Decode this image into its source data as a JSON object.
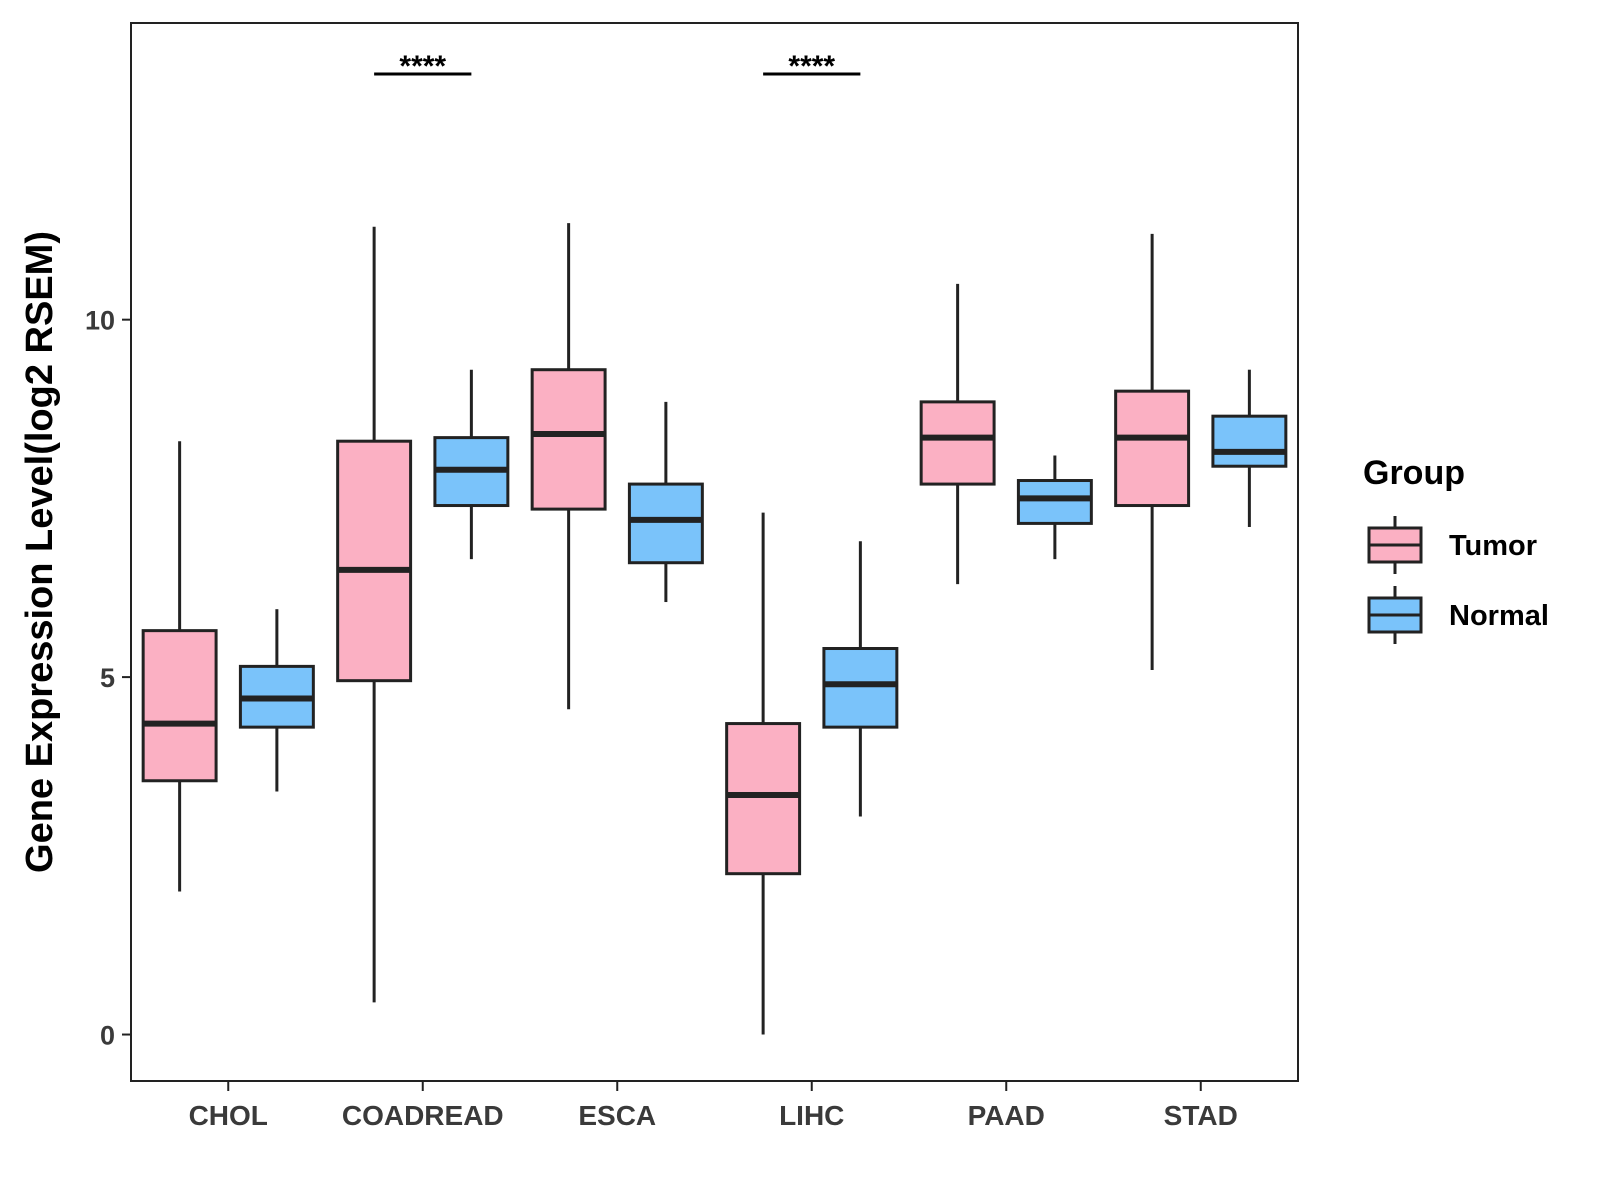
{
  "chart_data": {
    "type": "box",
    "title": "",
    "xlabel": "",
    "ylabel": "Gene Expression Level(log2 RSEM)",
    "ylim": [
      -0.65,
      14.15
    ],
    "yticks": [
      0,
      5,
      10
    ],
    "ytick_labels": [
      "0",
      "5",
      "10"
    ],
    "grid": false,
    "categories": [
      "CHOL",
      "COADREAD",
      "ESCA",
      "LIHC",
      "PAAD",
      "STAD"
    ],
    "legend": {
      "title": "Group",
      "position": "right",
      "entries": [
        "Tumor",
        "Normal"
      ]
    },
    "series": [
      {
        "name": "Tumor",
        "color": "#FBB0C3",
        "boxes": [
          {
            "min": 2.0,
            "q1": 3.55,
            "median": 4.35,
            "q3": 5.65,
            "max": 8.3
          },
          {
            "min": 0.45,
            "q1": 4.95,
            "median": 6.5,
            "q3": 8.3,
            "max": 11.3
          },
          {
            "min": 4.55,
            "q1": 7.35,
            "median": 8.4,
            "q3": 9.3,
            "max": 11.35
          },
          {
            "min": 0.0,
            "q1": 2.25,
            "median": 3.35,
            "q3": 4.35,
            "max": 7.3
          },
          {
            "min": 6.3,
            "q1": 7.7,
            "median": 8.35,
            "q3": 8.85,
            "max": 10.5
          },
          {
            "min": 5.1,
            "q1": 7.4,
            "median": 8.35,
            "q3": 9.0,
            "max": 11.2
          }
        ]
      },
      {
        "name": "Normal",
        "color": "#7AC3FA",
        "boxes": [
          {
            "min": 3.4,
            "q1": 4.3,
            "median": 4.7,
            "q3": 5.15,
            "max": 5.95
          },
          {
            "min": 6.65,
            "q1": 7.4,
            "median": 7.9,
            "q3": 8.35,
            "max": 9.3
          },
          {
            "min": 6.05,
            "q1": 6.6,
            "median": 7.2,
            "q3": 7.7,
            "max": 8.85
          },
          {
            "min": 3.05,
            "q1": 4.3,
            "median": 4.9,
            "q3": 5.4,
            "max": 6.9
          },
          {
            "min": 6.65,
            "q1": 7.15,
            "median": 7.5,
            "q3": 7.75,
            "max": 8.1
          },
          {
            "min": 7.1,
            "q1": 7.95,
            "median": 8.15,
            "q3": 8.65,
            "max": 9.3
          }
        ]
      }
    ],
    "significance": [
      {
        "category": "COADREAD",
        "label": "****"
      },
      {
        "category": "LIHC",
        "label": "****"
      }
    ]
  }
}
